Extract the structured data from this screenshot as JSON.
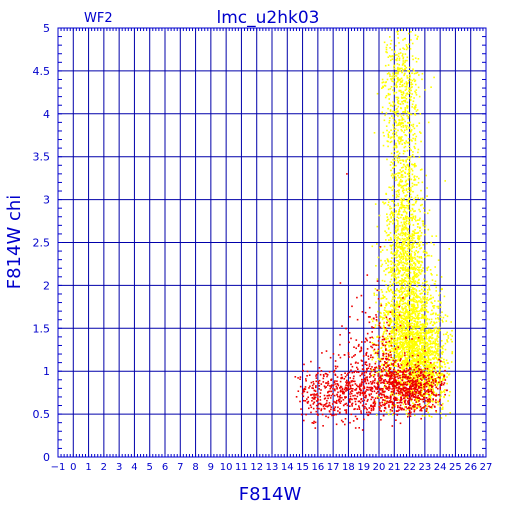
{
  "chart_data": {
    "type": "scatter",
    "title": "lmc_u2hk03",
    "chip_label": "WF2",
    "xlabel": "F814W",
    "ylabel": "F814W chi",
    "xlim": [
      -1,
      27
    ],
    "ylim": [
      0,
      5
    ],
    "x_major_ticks": [
      -1,
      0,
      1,
      2,
      3,
      4,
      5,
      6,
      7,
      8,
      9,
      10,
      11,
      12,
      13,
      14,
      15,
      16,
      17,
      18,
      19,
      20,
      21,
      22,
      23,
      24,
      25,
      26,
      27
    ],
    "x_tick_labels": [
      "−1",
      "0",
      "1",
      "2",
      "3",
      "4",
      "5",
      "6",
      "7",
      "8",
      "9",
      "10",
      "11",
      "12",
      "13",
      "14",
      "15",
      "16",
      "17",
      "18",
      "19",
      "20",
      "21",
      "22",
      "23",
      "24",
      "25",
      "26",
      "27"
    ],
    "y_major_ticks": [
      0,
      0.5,
      1,
      1.5,
      2,
      2.5,
      3,
      3.5,
      4,
      4.5,
      5
    ],
    "y_tick_labels": [
      "0",
      "0.5",
      "1",
      "1.5",
      "2",
      "2.5",
      "3",
      "3.5",
      "4",
      "4.5",
      "5"
    ],
    "grid": true,
    "colors": {
      "axes": "#0000cc",
      "grid": "#0000aa",
      "yellow_series": "#ffff00",
      "red_series": "#ee0000"
    },
    "series": [
      {
        "color": "#ffff00",
        "x_range": [
          19.5,
          24.8
        ],
        "y_range": [
          0.45,
          5.0
        ],
        "clusters": [
          {
            "x": 22.0,
            "y": 1.3,
            "sx": 1.1,
            "sy": 0.35,
            "count": 1600
          },
          {
            "x": 21.8,
            "y": 2.2,
            "sx": 0.8,
            "sy": 0.5,
            "count": 900
          },
          {
            "x": 21.6,
            "y": 3.4,
            "sx": 0.6,
            "sy": 0.8,
            "count": 650
          },
          {
            "x": 21.4,
            "y": 4.4,
            "sx": 0.6,
            "sy": 0.35,
            "count": 250
          },
          {
            "x": 23.2,
            "y": 1.0,
            "sx": 0.6,
            "sy": 0.25,
            "count": 500
          }
        ]
      },
      {
        "color": "#ee0000",
        "x_range": [
          14.5,
          24.5
        ],
        "y_range": [
          0.3,
          3.3
        ],
        "clusters": [
          {
            "x": 21.8,
            "y": 0.8,
            "sx": 1.3,
            "sy": 0.15,
            "count": 700
          },
          {
            "x": 18.0,
            "y": 0.75,
            "sx": 1.6,
            "sy": 0.18,
            "count": 450
          },
          {
            "x": 19.8,
            "y": 1.2,
            "sx": 1.2,
            "sy": 0.3,
            "count": 220
          },
          {
            "x": 16.0,
            "y": 0.7,
            "sx": 0.8,
            "sy": 0.15,
            "count": 80
          }
        ],
        "outliers": [
          {
            "x": 17.9,
            "y": 3.3
          },
          {
            "x": 18.6,
            "y": 1.6
          },
          {
            "x": 19.9,
            "y": 2.05
          },
          {
            "x": 20.1,
            "y": 2.45
          }
        ]
      }
    ]
  }
}
